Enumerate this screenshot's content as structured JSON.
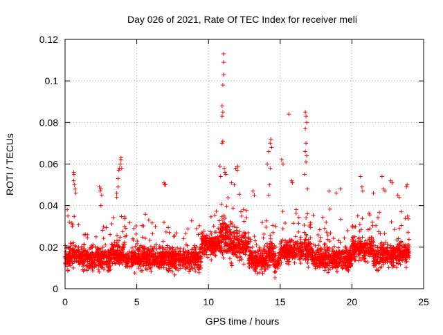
{
  "chart_data": {
    "type": "scatter",
    "title": "Day 026 of 2021, Rate Of TEC Index for receiver meli",
    "xlabel": "GPS time / hours",
    "ylabel": "ROTI / TECUs",
    "xlim": [
      0,
      25
    ],
    "ylim": [
      0,
      0.12
    ],
    "xticks": [
      0,
      5,
      10,
      15,
      20,
      25
    ],
    "yticks": [
      0,
      0.02,
      0.04,
      0.06,
      0.08,
      0.1,
      0.12
    ],
    "xtick_labels": [
      "0",
      "5",
      "10",
      "15",
      "20",
      "25"
    ],
    "ytick_labels": [
      "0",
      "0.02",
      "0.04",
      "0.06",
      "0.08",
      "0.1",
      "0.12"
    ],
    "grid": true,
    "marker": "+",
    "color": "#ff0000",
    "data_hours": [
      0,
      24
    ],
    "series": [
      {
        "name": "ROTI",
        "points": [
          [
            0.15,
            0.038
          ],
          [
            0.2,
            0.035
          ],
          [
            0.3,
            0.032
          ],
          [
            0.5,
            0.03
          ],
          [
            0.6,
            0.056
          ],
          [
            0.62,
            0.055
          ],
          [
            0.65,
            0.05
          ],
          [
            0.7,
            0.048
          ],
          [
            0.75,
            0.046
          ],
          [
            0.6,
            0.052
          ],
          [
            2.4,
            0.049
          ],
          [
            2.45,
            0.047
          ],
          [
            2.5,
            0.048
          ],
          [
            2.55,
            0.045
          ],
          [
            2.5,
            0.04
          ],
          [
            3.6,
            0.046
          ],
          [
            3.7,
            0.049
          ],
          [
            3.75,
            0.057
          ],
          [
            3.8,
            0.058
          ],
          [
            3.85,
            0.06
          ],
          [
            3.9,
            0.062
          ],
          [
            3.9,
            0.063
          ],
          [
            3.95,
            0.058
          ],
          [
            3.7,
            0.053
          ],
          [
            3.6,
            0.044
          ],
          [
            6.9,
            0.051
          ],
          [
            7.0,
            0.05
          ],
          [
            6.95,
            0.05
          ],
          [
            10.8,
            0.059
          ],
          [
            10.85,
            0.054
          ],
          [
            10.95,
            0.07
          ],
          [
            11.0,
            0.071
          ],
          [
            10.95,
            0.083
          ],
          [
            11.0,
            0.085
          ],
          [
            10.95,
            0.088
          ],
          [
            11.0,
            0.098
          ],
          [
            11.05,
            0.103
          ],
          [
            11.05,
            0.109
          ],
          [
            11.05,
            0.113
          ],
          [
            11.1,
            0.058
          ],
          [
            11.15,
            0.056
          ],
          [
            11.2,
            0.055
          ],
          [
            11.6,
            0.051
          ],
          [
            11.9,
            0.058
          ],
          [
            12.0,
            0.057
          ],
          [
            12.05,
            0.059
          ],
          [
            11.8,
            0.05
          ],
          [
            13.1,
            0.047
          ],
          [
            13.2,
            0.045
          ],
          [
            14.1,
            0.06
          ],
          [
            14.2,
            0.066
          ],
          [
            14.3,
            0.07
          ],
          [
            14.35,
            0.072
          ],
          [
            14.4,
            0.068
          ],
          [
            14.3,
            0.058
          ],
          [
            14.25,
            0.05
          ],
          [
            14.2,
            0.045
          ],
          [
            15.1,
            0.062
          ],
          [
            15.2,
            0.06
          ],
          [
            15.6,
            0.084
          ],
          [
            15.8,
            0.052
          ],
          [
            15.85,
            0.051
          ],
          [
            16.75,
            0.085
          ],
          [
            16.8,
            0.083
          ],
          [
            16.85,
            0.08
          ],
          [
            16.75,
            0.077
          ],
          [
            16.8,
            0.07
          ],
          [
            16.75,
            0.066
          ],
          [
            16.85,
            0.064
          ],
          [
            16.8,
            0.061
          ],
          [
            16.7,
            0.055
          ],
          [
            16.9,
            0.048
          ],
          [
            18.4,
            0.047
          ],
          [
            18.9,
            0.046
          ],
          [
            19.2,
            0.048
          ],
          [
            20.6,
            0.054
          ],
          [
            20.7,
            0.049
          ],
          [
            20.75,
            0.047
          ],
          [
            21.5,
            0.046
          ],
          [
            22.1,
            0.054
          ],
          [
            22.2,
            0.048
          ],
          [
            22.3,
            0.047
          ],
          [
            22.7,
            0.052
          ],
          [
            22.8,
            0.051
          ],
          [
            23.2,
            0.045
          ],
          [
            23.3,
            0.044
          ],
          [
            23.8,
            0.049
          ],
          [
            23.85,
            0.05
          ]
        ]
      }
    ]
  }
}
